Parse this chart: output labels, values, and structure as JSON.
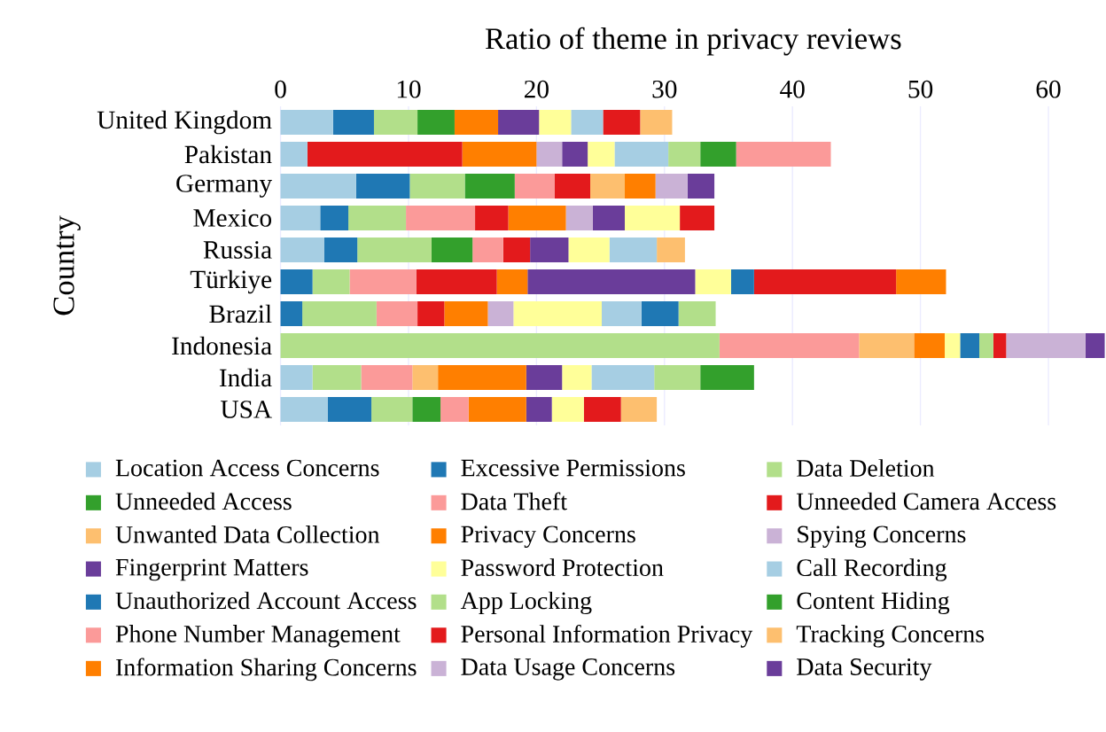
{
  "chart_data": {
    "type": "bar",
    "orientation": "horizontal",
    "stacked": true,
    "title": "Ratio of theme in privacy reviews",
    "ylabel": "Country",
    "categories": [
      "United Kingdom",
      "Pakistan",
      "Germany",
      "Mexico",
      "Russia",
      "Türkiye",
      "Brazil",
      "Indonesia",
      "India",
      "USA"
    ],
    "xlim": [
      0,
      64.5
    ],
    "xticks": [
      0,
      10,
      20,
      30,
      40,
      50,
      60
    ],
    "grid": "x",
    "legend": "bottom",
    "series": [
      {
        "name": "Location Access Concerns",
        "color": "#a6cee3",
        "values": [
          4.1,
          2.1,
          5.9,
          3.1,
          3.4,
          null,
          null,
          null,
          2.5,
          3.7
        ]
      },
      {
        "name": "Excessive Permissions",
        "color": "#1f78b4",
        "values": [
          3.2,
          null,
          4.2,
          2.2,
          2.6,
          2.5,
          1.7,
          null,
          null,
          3.4
        ]
      },
      {
        "name": "Data Deletion",
        "color": "#b2df8a",
        "values": [
          3.4,
          null,
          4.3,
          4.5,
          5.8,
          2.9,
          5.8,
          34.3,
          3.8,
          3.2
        ]
      },
      {
        "name": "Unneeded Access",
        "color": "#33a02c",
        "values": [
          2.9,
          null,
          3.9,
          null,
          3.2,
          null,
          null,
          null,
          null,
          2.2
        ]
      },
      {
        "name": "Data Theft",
        "color": "#fb9a99",
        "values": [
          null,
          null,
          3.1,
          5.4,
          2.4,
          5.2,
          3.2,
          10.9,
          4.0,
          2.2
        ]
      },
      {
        "name": "Unneeded Camera Access",
        "color": "#e31a1c",
        "values": [
          null,
          12.1,
          2.8,
          2.6,
          2.1,
          6.3,
          2.1,
          null,
          null,
          null
        ]
      },
      {
        "name": "Unwanted Data Collection",
        "color": "#fdbf6f",
        "values": [
          null,
          null,
          2.7,
          null,
          null,
          null,
          null,
          4.3,
          2.0,
          null
        ]
      },
      {
        "name": "Privacy Concerns",
        "color": "#ff7f00",
        "values": [
          3.4,
          5.8,
          2.4,
          4.5,
          null,
          2.4,
          3.4,
          2.4,
          6.9,
          4.5
        ]
      },
      {
        "name": "Spying Concerns",
        "color": "#cab2d6",
        "values": [
          null,
          2.0,
          2.5,
          2.1,
          null,
          null,
          2.0,
          null,
          null,
          null
        ]
      },
      {
        "name": "Fingerprint Matters",
        "color": "#6a3d9a",
        "values": [
          3.2,
          2.0,
          null,
          2.5,
          3.0,
          13.1,
          null,
          null,
          2.8,
          2.0
        ]
      },
      {
        "name": "Password Protection",
        "color": "#ffff99",
        "values": [
          2.5,
          2.1,
          null,
          4.3,
          3.2,
          2.8,
          6.9,
          1.2,
          2.3,
          2.5
        ]
      },
      {
        "name": "Call Recording",
        "color": "#a6cee3",
        "values": [
          2.5,
          4.2,
          null,
          null,
          3.7,
          null,
          3.1,
          null,
          4.9,
          null
        ]
      },
      {
        "name": "Unauthorized Account Access",
        "color": "#1f78b4",
        "values": [
          null,
          null,
          null,
          null,
          null,
          1.8,
          2.9,
          1.5,
          null,
          null
        ]
      },
      {
        "name": "App Locking",
        "color": "#b2df8a",
        "values": [
          null,
          2.5,
          null,
          null,
          null,
          null,
          2.9,
          1.1,
          3.6,
          null
        ]
      },
      {
        "name": "Content Hiding",
        "color": "#33a02c",
        "values": [
          null,
          2.8,
          null,
          null,
          null,
          null,
          null,
          null,
          4.2,
          null
        ]
      },
      {
        "name": "Phone Number Management",
        "color": "#fb9a99",
        "values": [
          null,
          7.4,
          null,
          null,
          null,
          null,
          null,
          null,
          null,
          null
        ]
      },
      {
        "name": "Personal Information Privacy",
        "color": "#e31a1c",
        "values": [
          2.9,
          null,
          null,
          2.7,
          null,
          11.1,
          null,
          1.0,
          null,
          2.9
        ]
      },
      {
        "name": "Tracking Concerns",
        "color": "#fdbf6f",
        "values": [
          2.5,
          null,
          null,
          null,
          2.2,
          null,
          null,
          null,
          null,
          2.8
        ]
      },
      {
        "name": "Information Sharing Concerns",
        "color": "#ff7f00",
        "values": [
          null,
          null,
          null,
          null,
          null,
          3.9,
          null,
          null,
          null,
          null
        ]
      },
      {
        "name": "Data Usage Concerns",
        "color": "#cab2d6",
        "values": [
          null,
          null,
          null,
          null,
          null,
          null,
          null,
          6.2,
          null,
          null
        ]
      },
      {
        "name": "Data Security",
        "color": "#6a3d9a",
        "values": [
          null,
          null,
          2.1,
          null,
          null,
          null,
          null,
          1.5,
          null,
          null
        ]
      }
    ]
  }
}
